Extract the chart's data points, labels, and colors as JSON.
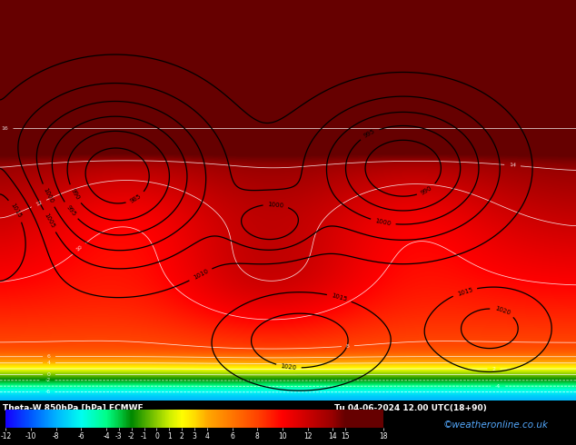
{
  "title": "Theta-W 850hPa [hPa] ECMWF",
  "datetime": "Tu 04-06-2024 12.00 UTC(18+90)",
  "watermark": "©weatheronline.co.uk",
  "colorbar_ticks": [
    -12,
    -10,
    -8,
    -6,
    -4,
    -3,
    -2,
    -1,
    0,
    1,
    2,
    3,
    4,
    6,
    8,
    10,
    12,
    14,
    15,
    18
  ],
  "colorbar_colors": [
    "#1500fe",
    "#0059ff",
    "#00b4ff",
    "#00fef0",
    "#00fe87",
    "#00cb43",
    "#008800",
    "#46aa00",
    "#8bcc00",
    "#ccee00",
    "#fffe00",
    "#ffdd00",
    "#ffaa00",
    "#ff7700",
    "#ff4400",
    "#ff0000",
    "#cc0000",
    "#990000",
    "#660000"
  ],
  "vmin": -12,
  "vmax": 18,
  "fig_width": 6.34,
  "fig_height": 4.9,
  "dpi": 100
}
